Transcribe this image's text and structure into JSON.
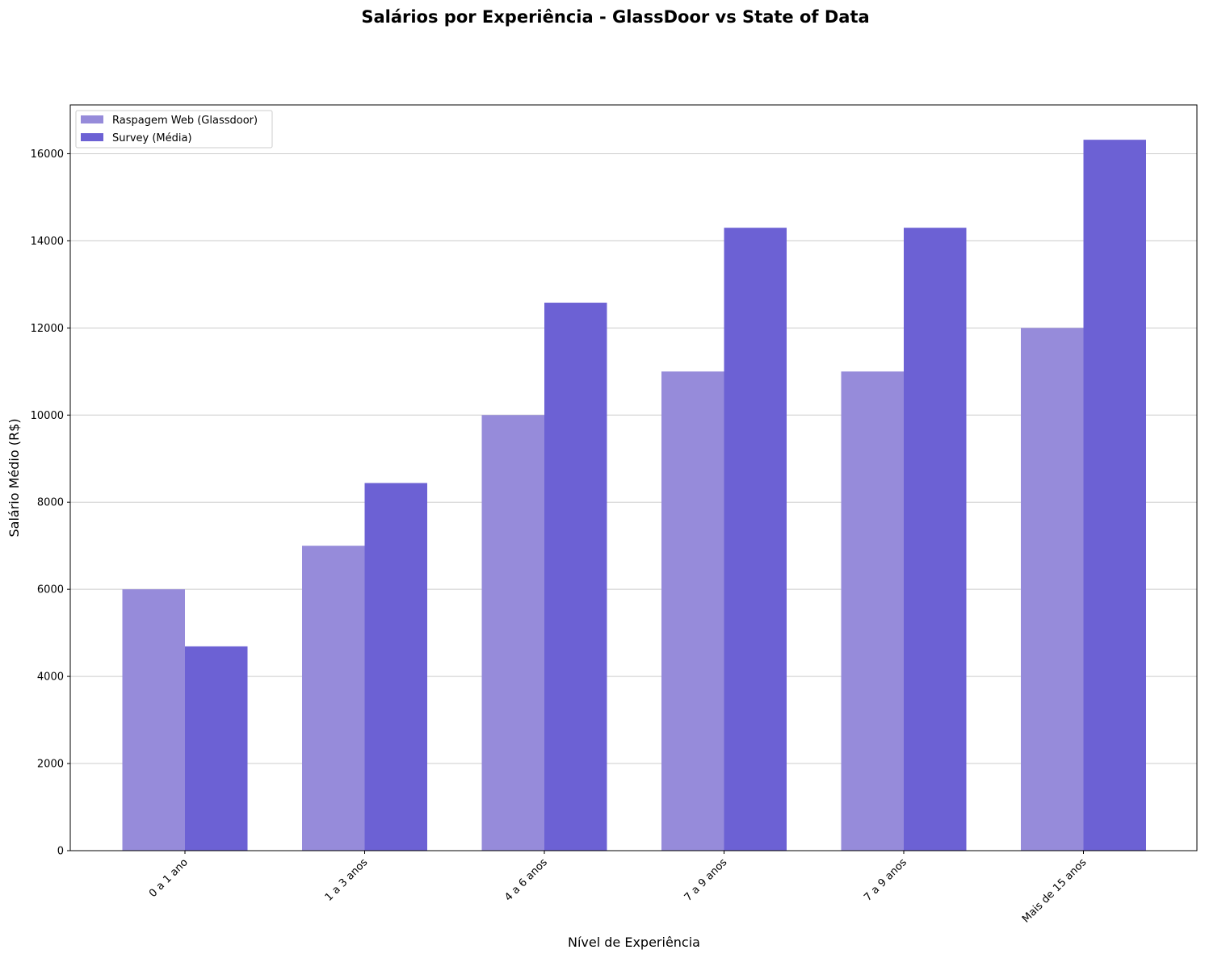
{
  "chart_data": {
    "type": "bar",
    "title": "Salários por Experiência - GlassDoor vs State of Data",
    "xlabel": "Nível de Experiência",
    "ylabel": "Salário Médio (R$)",
    "categories": [
      "0 a 1 ano",
      "1 a 3 anos",
      "4 a 6 anos",
      "7 a 9 anos",
      "7 a 9 anos",
      "Mais de 15 anos"
    ],
    "series": [
      {
        "name": "Raspagem Web (Glassdoor)",
        "color": "#968BDA",
        "values": [
          6000,
          7000,
          10000,
          11000,
          11000,
          12000
        ]
      },
      {
        "name": "Survey (Média)",
        "color": "#6C61D4",
        "values": [
          4690,
          8440,
          12580,
          14300,
          14300,
          16320
        ]
      }
    ],
    "ylim": [
      0,
      17120
    ],
    "yticks": [
      0,
      2000,
      4000,
      6000,
      8000,
      10000,
      12000,
      14000,
      16000
    ],
    "grid": "y",
    "legend_position": "top-left"
  }
}
